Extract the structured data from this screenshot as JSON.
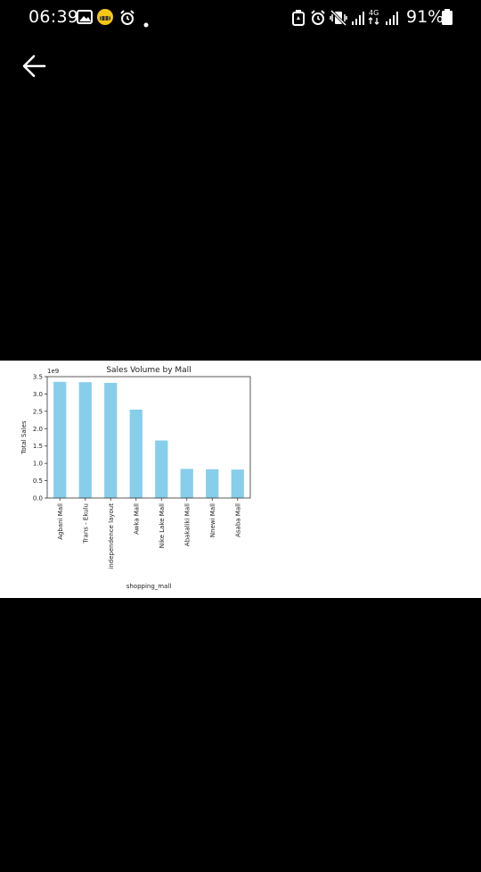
{
  "status_bar": {
    "time": "06:39",
    "battery": "91%",
    "left_icons": [
      "gallery-icon",
      "emoji-face-icon",
      "alarm-icon",
      "notification-dot-icon"
    ],
    "right_icons": [
      "battery-saver-icon",
      "alarm-icon",
      "vibrate-icon",
      "signal-icon",
      "4g-icon",
      "signal-icon",
      "battery-icon"
    ]
  },
  "nav": {
    "back_icon": "arrow-left-icon"
  },
  "chart_data": {
    "type": "bar",
    "title": "Sales Volume by Mall",
    "xlabel": "shopping_mall",
    "ylabel": "Total Sales",
    "offset_label": "1e9",
    "categories": [
      "Agbani Mall",
      "Trans - Ekulu",
      "independence layout",
      "Awka Mall",
      "Nike Lake Mall",
      "Abakaliki Mall",
      "Nnewi Mall",
      "Asaba Mall"
    ],
    "values": [
      3.35,
      3.34,
      3.32,
      2.55,
      1.66,
      0.84,
      0.83,
      0.82
    ],
    "yticks": [
      "0.0",
      "0.5",
      "1.0",
      "1.5",
      "2.0",
      "2.5",
      "3.0",
      "3.5"
    ],
    "ylim": [
      0,
      3.5
    ],
    "bar_color": "#87CEEB",
    "grid": false,
    "legend": "none"
  }
}
